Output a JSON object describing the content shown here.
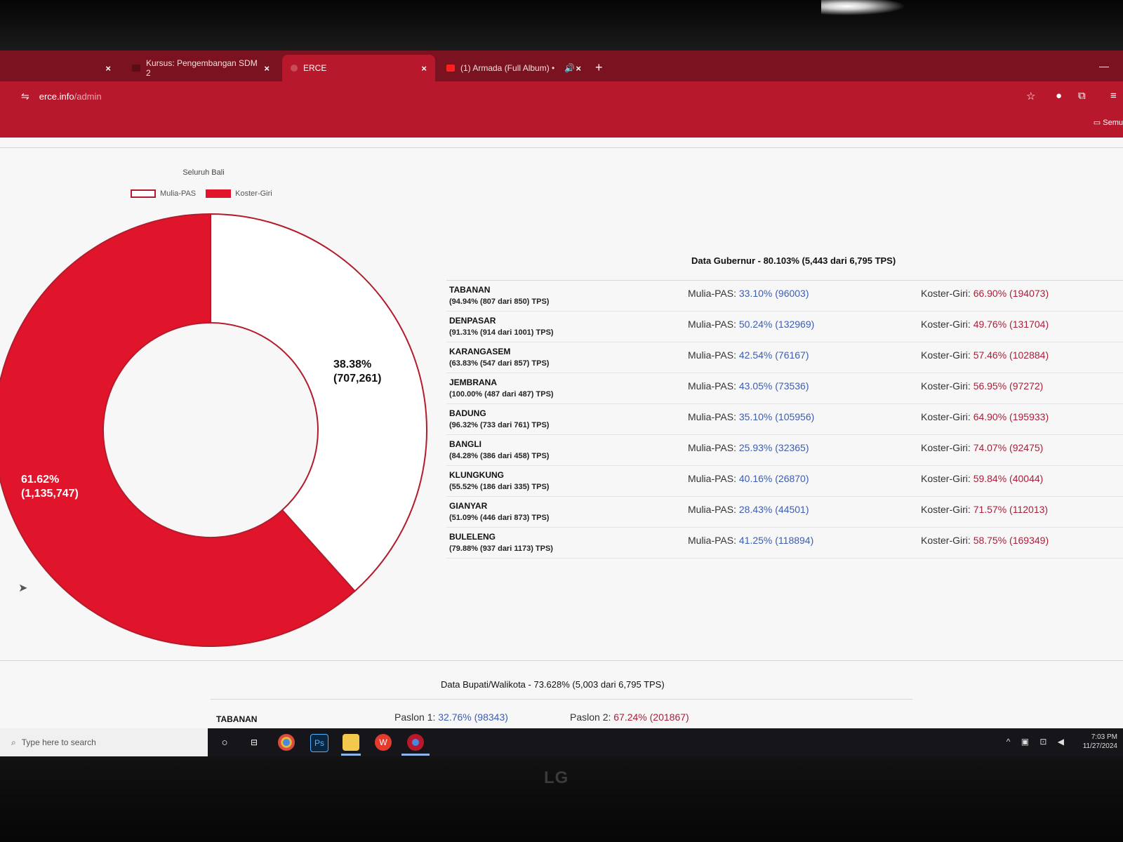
{
  "browser": {
    "tabs": [
      {
        "label": "",
        "active": false
      },
      {
        "label": "Kursus: Pengembangan SDM 2",
        "active": false
      },
      {
        "label": "ERCE",
        "active": true
      },
      {
        "label": "(1) Armada (Full Album) •",
        "active": false
      }
    ],
    "close_glyph": "×",
    "new_tab_glyph": "+",
    "address_host": "erce.info",
    "address_path": "/admin",
    "bookmarks_label": "Semu"
  },
  "chart": {
    "title": "Seluruh Bali",
    "legend": [
      {
        "name": "Mulia-PAS",
        "color": "#ffffff"
      },
      {
        "name": "Koster-Giri",
        "color": "#e0152b"
      }
    ]
  },
  "chart_data": {
    "type": "pie",
    "title": "Seluruh Bali",
    "donut": true,
    "series": [
      {
        "name": "Mulia-PAS",
        "percent": 38.38,
        "value": 707261,
        "label_pct": "38.38%",
        "label_val": "(707,261)",
        "color": "#ffffff"
      },
      {
        "name": "Koster-Giri",
        "percent": 61.62,
        "value": 1135747,
        "label_pct": "61.62%",
        "label_val": "(1,135,747)",
        "color": "#e0152b"
      }
    ]
  },
  "gubernur": {
    "title": "Data Gubernur - 80.103% (5,443 dari 6,795 TPS)",
    "mp_prefix": "Mulia-PAS: ",
    "kg_prefix": "Koster-Giri: ",
    "rows": [
      {
        "region": "TABANAN",
        "tps": "(94.94% (807 dari 850) TPS)",
        "mp": "33.10% (96003)",
        "kg": "66.90% (194073)"
      },
      {
        "region": "DENPASAR",
        "tps": "(91.31% (914 dari 1001) TPS)",
        "mp": "50.24% (132969)",
        "kg": "49.76% (131704)"
      },
      {
        "region": "KARANGASEM",
        "tps": "(63.83% (547 dari 857) TPS)",
        "mp": "42.54% (76167)",
        "kg": "57.46% (102884)"
      },
      {
        "region": "JEMBRANA",
        "tps": "(100.00% (487 dari 487) TPS)",
        "mp": "43.05% (73536)",
        "kg": "56.95% (97272)"
      },
      {
        "region": "BADUNG",
        "tps": "(96.32% (733 dari 761) TPS)",
        "mp": "35.10% (105956)",
        "kg": "64.90% (195933)"
      },
      {
        "region": "BANGLI",
        "tps": "(84.28% (386 dari 458) TPS)",
        "mp": "25.93% (32365)",
        "kg": "74.07% (92475)"
      },
      {
        "region": "KLUNGKUNG",
        "tps": "(55.52% (186 dari 335) TPS)",
        "mp": "40.16% (26870)",
        "kg": "59.84% (40044)"
      },
      {
        "region": "GIANYAR",
        "tps": "(51.09% (446 dari 873) TPS)",
        "mp": "28.43% (44501)",
        "kg": "71.57% (112013)"
      },
      {
        "region": "BULELENG",
        "tps": "(79.88% (937 dari 1173) TPS)",
        "mp": "41.25% (118894)",
        "kg": "58.75% (169349)"
      }
    ]
  },
  "bupati": {
    "title": "Data Bupati/Walikota - 73.628% (5,003 dari 6,795 TPS)",
    "first_row": {
      "region": "TABANAN",
      "p1_prefix": "Paslon 1: ",
      "p1": "32.76% (98343)",
      "p2_prefix": "Paslon 2: ",
      "p2": "67.24% (201867)"
    }
  },
  "taskbar": {
    "search_placeholder": "Type here to search",
    "time": "7:03 PM",
    "date": "11/27/2024",
    "apps": [
      "cortana-icon",
      "task-view-icon",
      "chrome-icon",
      "photoshop-icon",
      "file-explorer-icon",
      "wps-icon",
      "chrome-profile-icon"
    ]
  },
  "monitor": {
    "brand": "LG"
  }
}
